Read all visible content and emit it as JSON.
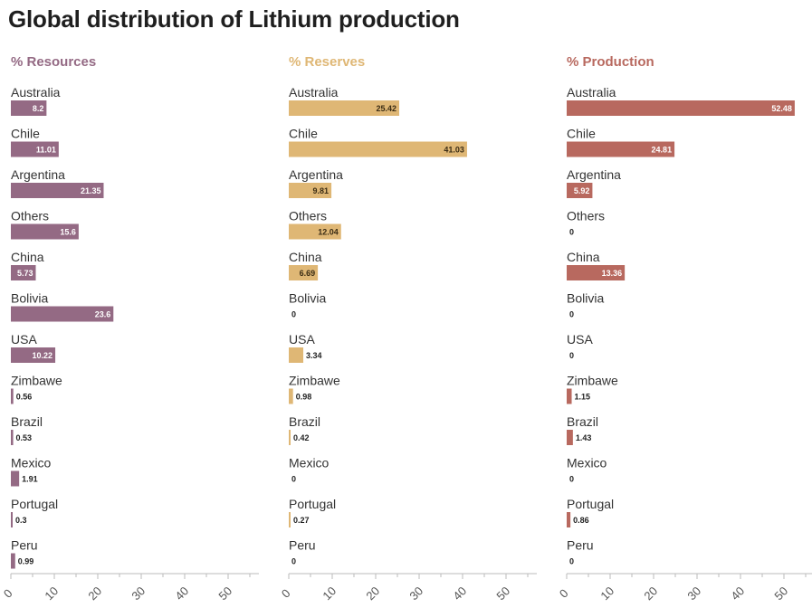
{
  "title": "Global distribution of Lithium production",
  "colors": {
    "resources": "#946a84",
    "reserves": "#dfb775",
    "production": "#b8695f",
    "axis": "#bbbbbb"
  },
  "chart_data": {
    "type": "bar",
    "orientation": "horizontal",
    "title": "Global distribution of Lithium production",
    "categories": [
      "Australia",
      "Chile",
      "Argentina",
      "Others",
      "China",
      "Bolivia",
      "USA",
      "Zimbawe",
      "Brazil",
      "Mexico",
      "Portugal",
      "Peru"
    ],
    "xlim": [
      0,
      55
    ],
    "xticks": [
      0,
      10,
      20,
      30,
      40,
      50
    ],
    "panels": [
      {
        "id": "resources",
        "name": "% Resources",
        "values": [
          8.2,
          11.01,
          21.35,
          15.6,
          5.73,
          23.6,
          10.22,
          0.56,
          0.53,
          1.91,
          0.3,
          0.99
        ]
      },
      {
        "id": "reserves",
        "name": "% Reserves",
        "values": [
          25.42,
          41.03,
          9.81,
          12.04,
          6.69,
          0,
          3.34,
          0.98,
          0.42,
          0,
          0.27,
          0
        ]
      },
      {
        "id": "production",
        "name": "% Production",
        "values": [
          52.48,
          24.81,
          5.92,
          0,
          13.36,
          0,
          0,
          1.15,
          1.43,
          0,
          0.86,
          0
        ]
      }
    ]
  }
}
